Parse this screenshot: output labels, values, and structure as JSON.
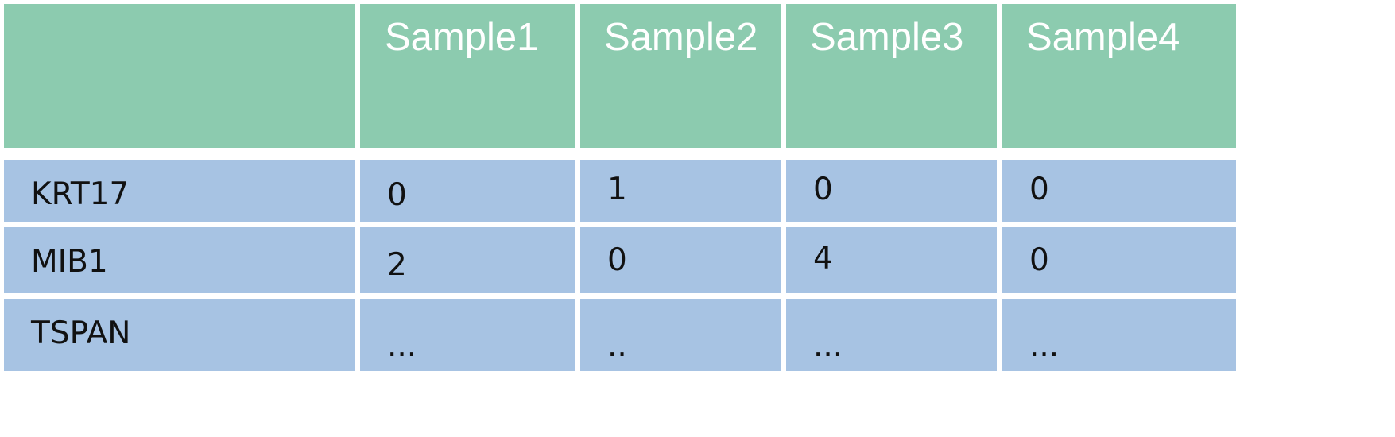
{
  "header": {
    "columns": [
      "",
      "Sample1",
      "Sample2",
      "Sample3",
      "Sample4"
    ]
  },
  "rows": [
    {
      "gene": "KRT17",
      "values": [
        "0",
        "1",
        "0",
        "0"
      ]
    },
    {
      "gene": "MIB1",
      "values": [
        "2",
        "0",
        "4",
        "0"
      ]
    },
    {
      "gene": "TSPAN",
      "values": [
        "...",
        "..",
        "...",
        "..."
      ]
    }
  ],
  "colors": {
    "header_fill": "#8ccbaf",
    "body_fill": "#a7c3e3",
    "header_text": "#ffffff",
    "body_text": "#111111",
    "grid": "#ffffff"
  }
}
